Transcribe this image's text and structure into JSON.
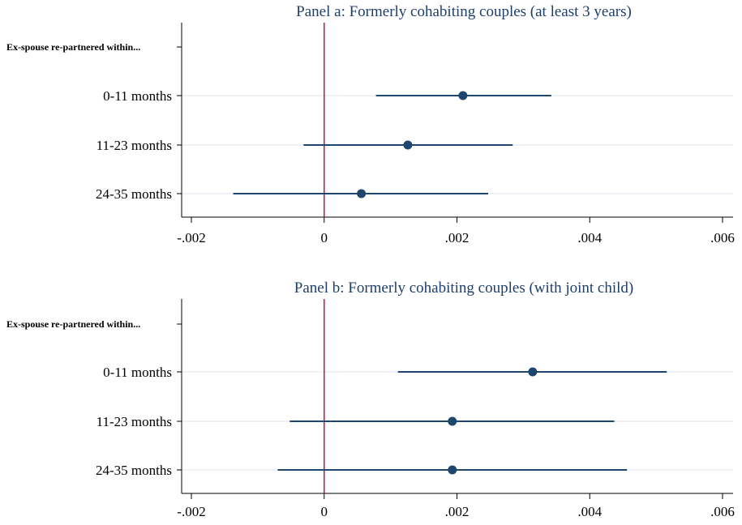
{
  "colors": {
    "title": "#1e3f6b",
    "series": "#1e466e",
    "ref_line": "#c80f4b",
    "axis": "#000000",
    "grid": "#e8eef3"
  },
  "chart_data": [
    {
      "type": "scatter",
      "subtype": "coefficient-plot",
      "title": "Panel a: Formerly cohabiting couples (at least 3 years)",
      "group_header": "Ex-spouse re-partnered within...",
      "categories": [
        "0-11 months",
        "11-23 months",
        "24-35 months"
      ],
      "estimates": [
        0.00209,
        0.00126,
        0.00056
      ],
      "ci_low": [
        0.00078,
        -0.00031,
        -0.00137
      ],
      "ci_high": [
        0.00342,
        0.00284,
        0.00247
      ],
      "reference_line": 0,
      "xlim": [
        -0.002,
        0.006
      ],
      "xticks": [
        -0.002,
        0,
        0.002,
        0.004,
        0.006
      ],
      "xtick_labels": [
        "-.002",
        "0",
        ".002",
        ".004",
        ".006"
      ],
      "xlabel": "",
      "ylabel": "",
      "grid": true
    },
    {
      "type": "scatter",
      "subtype": "coefficient-plot",
      "title": "Panel b: Formerly cohabiting couples (with joint child)",
      "group_header": "Ex-spouse re-partnered within...",
      "categories": [
        "0-11 months",
        "11-23 months",
        "24-35 months"
      ],
      "estimates": [
        0.00314,
        0.00193,
        0.00193
      ],
      "ci_low": [
        0.00111,
        -0.00052,
        -0.0007
      ],
      "ci_high": [
        0.00516,
        0.00437,
        0.00456
      ],
      "reference_line": 0,
      "xlim": [
        -0.002,
        0.006
      ],
      "xticks": [
        -0.002,
        0,
        0.002,
        0.004,
        0.006
      ],
      "xtick_labels": [
        "-.002",
        "0",
        ".002",
        ".004",
        ".006"
      ],
      "xlabel": "",
      "ylabel": "",
      "grid": true
    }
  ]
}
